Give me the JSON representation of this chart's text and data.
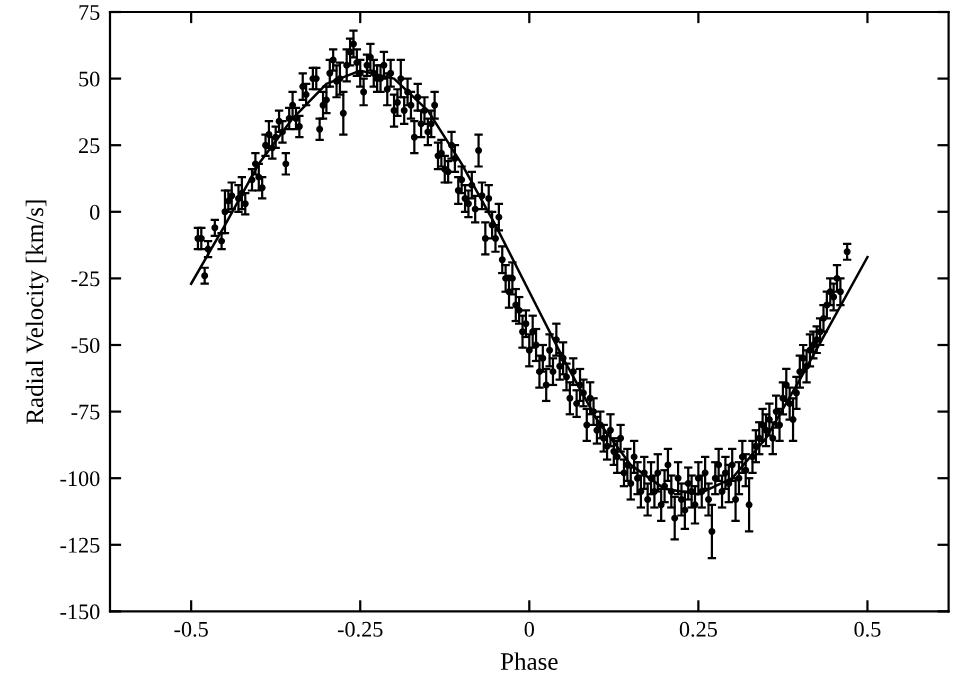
{
  "chart_data": {
    "type": "scatter",
    "xlabel": "Phase",
    "ylabel": "Radial Velocity [km/s]",
    "xlim": [
      -0.62,
      0.62
    ],
    "xticks": [
      -0.5,
      -0.25,
      0,
      0.25,
      0.5
    ],
    "ylim": [
      -150,
      75
    ],
    "yticks": [
      -150,
      -125,
      -100,
      -75,
      -50,
      -25,
      0,
      25,
      50,
      75
    ],
    "grid": false,
    "series": [
      {
        "marker": "circle",
        "color": "#000000",
        "x": [
          -0.49,
          -0.485,
          -0.48,
          -0.475,
          -0.465,
          -0.455,
          -0.45,
          -0.445,
          -0.44,
          -0.43,
          -0.425,
          -0.42,
          -0.41,
          -0.405,
          -0.4,
          -0.395,
          -0.39,
          -0.385,
          -0.38,
          -0.375,
          -0.37,
          -0.365,
          -0.36,
          -0.355,
          -0.35,
          -0.345,
          -0.34,
          -0.335,
          -0.33,
          -0.32,
          -0.315,
          -0.31,
          -0.305,
          -0.3,
          -0.295,
          -0.29,
          -0.285,
          -0.28,
          -0.275,
          -0.27,
          -0.265,
          -0.26,
          -0.255,
          -0.25,
          -0.245,
          -0.24,
          -0.235,
          -0.23,
          -0.225,
          -0.22,
          -0.215,
          -0.21,
          -0.205,
          -0.2,
          -0.195,
          -0.19,
          -0.185,
          -0.18,
          -0.175,
          -0.17,
          -0.165,
          -0.16,
          -0.155,
          -0.15,
          -0.145,
          -0.14,
          -0.135,
          -0.13,
          -0.125,
          -0.12,
          -0.115,
          -0.11,
          -0.105,
          -0.1,
          -0.095,
          -0.09,
          -0.085,
          -0.08,
          -0.075,
          -0.07,
          -0.065,
          -0.06,
          -0.055,
          -0.05,
          -0.045,
          -0.04,
          -0.035,
          -0.03,
          -0.025,
          -0.02,
          -0.015,
          -0.01,
          -0.005,
          0.0,
          0.005,
          0.01,
          0.015,
          0.02,
          0.025,
          0.03,
          0.035,
          0.04,
          0.045,
          0.05,
          0.055,
          0.06,
          0.065,
          0.07,
          0.075,
          0.08,
          0.085,
          0.09,
          0.095,
          0.1,
          0.105,
          0.11,
          0.115,
          0.12,
          0.125,
          0.13,
          0.135,
          0.14,
          0.145,
          0.15,
          0.155,
          0.16,
          0.165,
          0.17,
          0.175,
          0.18,
          0.185,
          0.19,
          0.195,
          0.2,
          0.205,
          0.21,
          0.215,
          0.22,
          0.225,
          0.23,
          0.235,
          0.24,
          0.245,
          0.25,
          0.255,
          0.26,
          0.265,
          0.27,
          0.275,
          0.28,
          0.285,
          0.29,
          0.295,
          0.3,
          0.305,
          0.31,
          0.315,
          0.32,
          0.325,
          0.33,
          0.335,
          0.34,
          0.345,
          0.35,
          0.355,
          0.36,
          0.365,
          0.37,
          0.375,
          0.38,
          0.385,
          0.39,
          0.395,
          0.4,
          0.405,
          0.41,
          0.415,
          0.42,
          0.425,
          0.43,
          0.435,
          0.44,
          0.445,
          0.45,
          0.455,
          0.46,
          0.47
        ],
        "values": [
          -10,
          -10,
          -24,
          -14,
          -6,
          -11,
          0,
          4,
          6,
          5,
          7,
          3,
          12,
          18,
          13,
          9,
          25,
          29,
          24,
          28,
          34,
          30,
          18,
          35,
          40,
          35,
          32,
          47,
          44,
          50,
          50,
          31,
          40,
          42,
          52,
          57,
          49,
          50,
          37,
          55,
          60,
          63,
          56,
          52,
          45,
          55,
          58,
          52,
          50,
          50,
          55,
          46,
          52,
          38,
          41,
          50,
          38,
          45,
          40,
          28,
          43,
          33,
          38,
          30,
          33,
          40,
          21,
          22,
          16,
          15,
          25,
          20,
          8,
          12,
          5,
          3,
          10,
          1,
          23,
          6,
          -10,
          5,
          -5,
          -10,
          -2,
          -18,
          -25,
          -30,
          -25,
          -35,
          -37,
          -45,
          -42,
          -52,
          -45,
          -50,
          -60,
          -55,
          -65,
          -52,
          -60,
          -48,
          -58,
          -55,
          -62,
          -70,
          -60,
          -72,
          -65,
          -68,
          -80,
          -70,
          -75,
          -82,
          -80,
          -85,
          -88,
          -82,
          -90,
          -92,
          -85,
          -98,
          -95,
          -102,
          -92,
          -100,
          -105,
          -98,
          -108,
          -100,
          -105,
          -98,
          -110,
          -103,
          -95,
          -105,
          -115,
          -100,
          -108,
          -112,
          -102,
          -105,
          -110,
          -100,
          -105,
          -98,
          -108,
          -120,
          -100,
          -95,
          -105,
          -98,
          -102,
          -95,
          -108,
          -100,
          -92,
          -97,
          -110,
          -92,
          -88,
          -85,
          -80,
          -82,
          -78,
          -85,
          -75,
          -80,
          -70,
          -65,
          -72,
          -78,
          -68,
          -60,
          -55,
          -58,
          -52,
          -50,
          -48,
          -45,
          -40,
          -35,
          -30,
          -32,
          -25,
          -30,
          -15
        ],
        "errors": [
          4,
          4,
          3,
          3,
          3,
          3,
          8,
          4,
          5,
          5,
          6,
          4,
          4,
          4,
          5,
          4,
          4,
          5,
          4,
          4,
          4,
          4,
          4,
          4,
          5,
          4,
          4,
          5,
          4,
          4,
          4,
          4,
          5,
          5,
          5,
          4,
          6,
          6,
          8,
          6,
          5,
          5,
          5,
          5,
          5,
          4,
          5,
          5,
          5,
          5,
          5,
          6,
          5,
          6,
          5,
          7,
          5,
          5,
          5,
          6,
          5,
          5,
          5,
          5,
          5,
          5,
          5,
          5,
          5,
          4,
          5,
          5,
          5,
          5,
          5,
          5,
          5,
          5,
          6,
          5,
          6,
          5,
          5,
          5,
          5,
          5,
          5,
          6,
          6,
          6,
          5,
          6,
          5,
          6,
          6,
          6,
          6,
          5,
          6,
          6,
          5,
          6,
          5,
          6,
          5,
          6,
          5,
          5,
          6,
          5,
          6,
          6,
          5,
          5,
          5,
          5,
          5,
          6,
          5,
          6,
          5,
          5,
          6,
          6,
          6,
          6,
          6,
          6,
          6,
          6,
          6,
          7,
          6,
          6,
          6,
          6,
          8,
          6,
          6,
          7,
          6,
          6,
          7,
          6,
          6,
          6,
          6,
          10,
          6,
          6,
          6,
          6,
          7,
          6,
          8,
          6,
          6,
          6,
          10,
          6,
          6,
          6,
          6,
          6,
          6,
          6,
          6,
          6,
          6,
          6,
          6,
          8,
          6,
          6,
          5,
          6,
          6,
          5,
          5,
          5,
          5,
          5,
          5,
          5,
          5,
          5,
          3
        ]
      },
      {
        "type": "line",
        "color": "#000000",
        "x": [
          -0.5,
          -0.45,
          -0.4,
          -0.35,
          -0.3,
          -0.25,
          -0.2,
          -0.15,
          -0.1,
          -0.05,
          0,
          0.05,
          0.1,
          0.15,
          0.2,
          0.25,
          0.3,
          0.35,
          0.4,
          0.45,
          0.5
        ],
        "values": [
          -27,
          -5,
          18,
          35,
          48,
          53,
          50,
          38,
          18,
          -5,
          -30,
          -55,
          -78,
          -95,
          -104,
          -106,
          -100,
          -85,
          -63,
          -40,
          -17
        ]
      }
    ]
  }
}
